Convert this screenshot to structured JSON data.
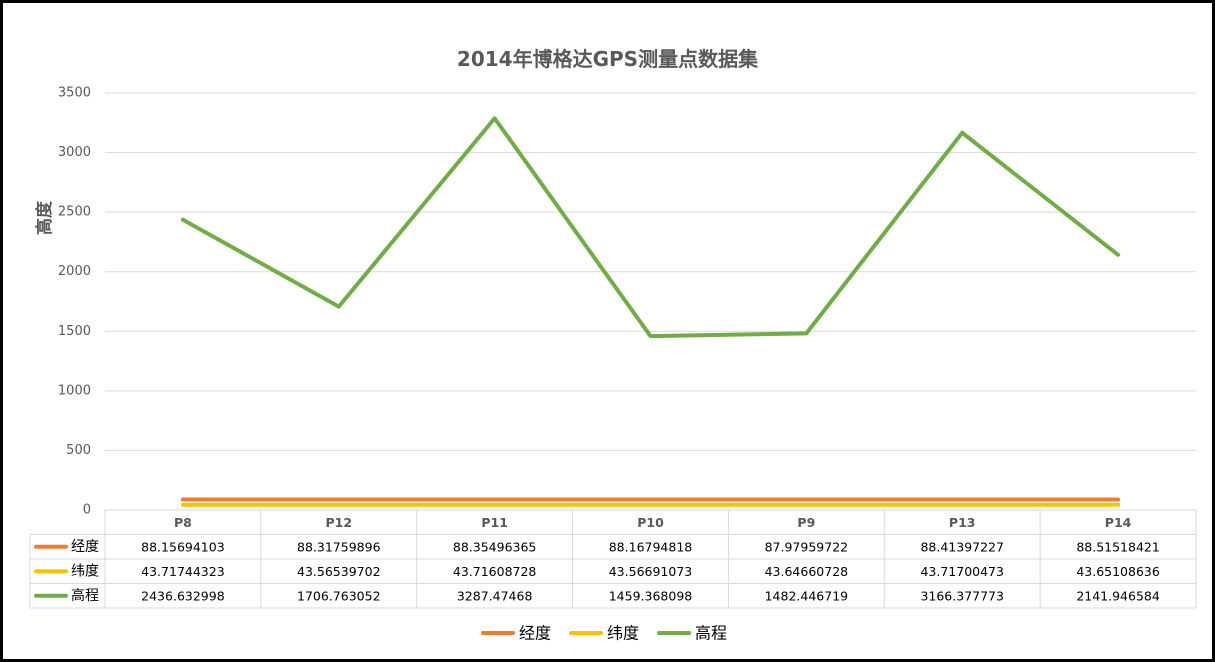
{
  "chart_data": {
    "type": "line",
    "title": "2014年博格达GPS测量点数据集",
    "ylabel": "高度",
    "xlabel": "",
    "categories": [
      "P8",
      "P12",
      "P11",
      "P10",
      "P9",
      "P13",
      "P14"
    ],
    "ylim": [
      0,
      3500
    ],
    "yticks": [
      0,
      500,
      1000,
      1500,
      2000,
      2500,
      3000,
      3500
    ],
    "grid": true,
    "legend": "bottom",
    "data_table": true,
    "series": [
      {
        "name": "经度",
        "color": "#ED7D31",
        "values": [
          88.15694103,
          88.31759896,
          88.35496365,
          88.16794818,
          87.97959722,
          88.41397227,
          88.51518421
        ],
        "labels": [
          "88.15694103",
          "88.31759896",
          "88.35496365",
          "88.16794818",
          "87.97959722",
          "88.41397227",
          "88.51518421"
        ]
      },
      {
        "name": "纬度",
        "color": "#FFC000",
        "values": [
          43.71744323,
          43.56539702,
          43.71608728,
          43.56691073,
          43.64660728,
          43.71700473,
          43.65108636
        ],
        "labels": [
          "43.71744323",
          "43.56539702",
          "43.71608728",
          "43.56691073",
          "43.64660728",
          "43.71700473",
          "43.65108636"
        ]
      },
      {
        "name": "高程",
        "color": "#70AD47",
        "values": [
          2436.632998,
          1706.763052,
          3287.47468,
          1459.368098,
          1482.446719,
          3166.377773,
          2141.946584
        ],
        "labels": [
          "2436.632998",
          "1706.763052",
          "3287.47468",
          "1459.368098",
          "1482.446719",
          "3166.377773",
          "2141.946584"
        ]
      }
    ]
  }
}
